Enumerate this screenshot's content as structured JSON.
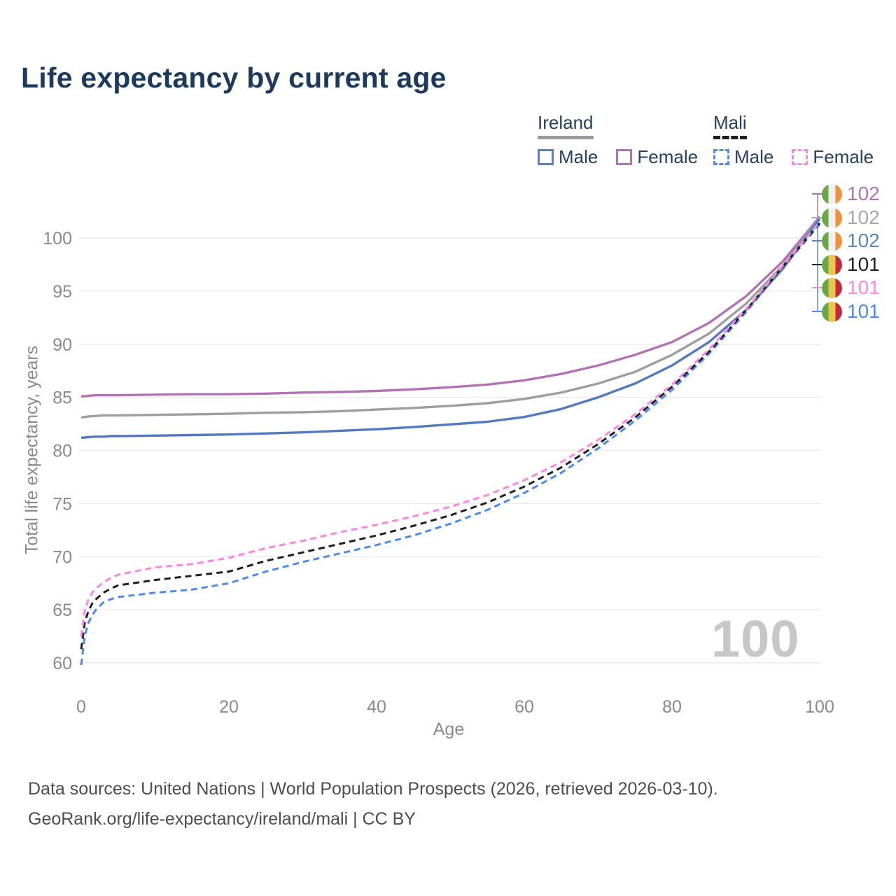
{
  "page": {
    "title": "Life expectancy by current age",
    "background": "#ffffff"
  },
  "legend": {
    "groups": [
      {
        "name": "Ireland",
        "underline_style": "solid",
        "underline_color": "#9a9a9a",
        "items": [
          {
            "label": "Male",
            "color": "#5b7fbd",
            "style": "solid"
          },
          {
            "label": "Female",
            "color": "#b173b1",
            "style": "solid"
          }
        ]
      },
      {
        "name": "Mali",
        "underline_style": "dashed",
        "underline_color": "#1f1f1f",
        "items": [
          {
            "label": "Male",
            "color": "#4d8af0",
            "style": "dashed"
          },
          {
            "label": "Female",
            "color": "#ff85e0",
            "style": "dashed"
          }
        ]
      }
    ]
  },
  "chart_data": {
    "type": "line",
    "title": "Life expectancy by current age",
    "xlabel": "Age",
    "ylabel": "Total life expectancy, years",
    "xlim": [
      0,
      100
    ],
    "ylim": [
      58,
      103
    ],
    "xticks": [
      0,
      20,
      40,
      60,
      80,
      100
    ],
    "yticks": [
      60,
      65,
      70,
      75,
      80,
      85,
      90,
      95,
      100
    ],
    "grid": "horizontal",
    "gridline_color": "#ececec",
    "tick_color": "#8a8a8a",
    "x": [
      0,
      0.5,
      1,
      1.5,
      2,
      3,
      4,
      5,
      10,
      15,
      20,
      25,
      30,
      35,
      40,
      45,
      50,
      55,
      60,
      65,
      70,
      75,
      80,
      85,
      90,
      95,
      100
    ],
    "series": [
      {
        "id": "ireland-female",
        "name": "Ireland Female",
        "country": "Ireland",
        "sex": "Female",
        "color": "#b173b1",
        "dash": false,
        "values": [
          85.1,
          85.1,
          85.15,
          85.17,
          85.2,
          85.2,
          85.2,
          85.2,
          85.25,
          85.3,
          85.3,
          85.35,
          85.45,
          85.5,
          85.6,
          85.75,
          85.95,
          86.2,
          86.6,
          87.2,
          88.0,
          89.0,
          90.2,
          92.0,
          94.5,
          97.8,
          102.0
        ]
      },
      {
        "id": "ireland-average",
        "name": "Ireland Both sexes",
        "country": "Ireland",
        "sex": "Both",
        "color": "#9e9e9e",
        "dash": false,
        "values": [
          83.1,
          83.15,
          83.2,
          83.22,
          83.25,
          83.3,
          83.3,
          83.3,
          83.35,
          83.4,
          83.45,
          83.55,
          83.6,
          83.7,
          83.85,
          84.0,
          84.2,
          84.45,
          84.85,
          85.45,
          86.3,
          87.4,
          89.0,
          91.0,
          93.8,
          97.4,
          101.9
        ]
      },
      {
        "id": "ireland-male",
        "name": "Ireland Male",
        "country": "Ireland",
        "sex": "Male",
        "color": "#5579be",
        "dash": false,
        "values": [
          81.2,
          81.22,
          81.25,
          81.28,
          81.3,
          81.3,
          81.35,
          81.35,
          81.4,
          81.45,
          81.5,
          81.6,
          81.7,
          81.85,
          82.0,
          82.2,
          82.45,
          82.7,
          83.15,
          83.9,
          85.0,
          86.3,
          88.0,
          90.2,
          93.2,
          97.1,
          101.8
        ]
      },
      {
        "id": "mali-male",
        "name": "Mali Male",
        "country": "Mali",
        "sex": "Male",
        "color": "#4d8af0",
        "dash": true,
        "values": [
          59.8,
          62.6,
          63.8,
          64.5,
          65.0,
          65.7,
          66.0,
          66.2,
          66.6,
          66.9,
          67.5,
          68.6,
          69.5,
          70.3,
          71.1,
          72.0,
          73.1,
          74.4,
          76.0,
          77.9,
          80.2,
          82.8,
          85.7,
          89.1,
          93.0,
          97.2,
          101.3
        ]
      },
      {
        "id": "mali-average",
        "name": "Mali Both sexes",
        "country": "Mali",
        "sex": "Both",
        "color": "#1f1f1f",
        "dash": true,
        "values": [
          61.3,
          63.9,
          64.9,
          65.6,
          66.0,
          66.6,
          67.0,
          67.3,
          67.8,
          68.2,
          68.6,
          69.6,
          70.4,
          71.2,
          72.0,
          72.9,
          73.9,
          75.1,
          76.6,
          78.4,
          80.6,
          83.1,
          86.0,
          89.3,
          93.2,
          97.3,
          101.4
        ]
      },
      {
        "id": "mali-female",
        "name": "Mali Female",
        "country": "Mali",
        "sex": "Female",
        "color": "#ff85e0",
        "dash": true,
        "values": [
          62.5,
          65.0,
          66.0,
          66.6,
          67.0,
          67.6,
          68.0,
          68.3,
          69.0,
          69.3,
          69.9,
          70.8,
          71.5,
          72.3,
          73.0,
          73.8,
          74.7,
          75.8,
          77.2,
          78.9,
          81.0,
          83.4,
          86.2,
          89.5,
          93.3,
          97.4,
          101.5
        ]
      }
    ],
    "flags": {
      "ireland": [
        "#69a744",
        "#f0f0f0",
        "#f0913a"
      ],
      "mali": [
        "#69a744",
        "#e9c64d",
        "#c2293d"
      ]
    },
    "end_labels": [
      {
        "id": "ireland-female",
        "flag": "ireland",
        "value": "102",
        "color": "#b173b1"
      },
      {
        "id": "ireland-average",
        "flag": "ireland",
        "value": "102",
        "color": "#a9a9a9"
      },
      {
        "id": "ireland-male",
        "flag": "ireland",
        "value": "102",
        "color": "#5b83c4"
      },
      {
        "id": "mali-average",
        "flag": "mali",
        "value": "101",
        "color": "#1f1f1f"
      },
      {
        "id": "mali-female",
        "flag": "mali",
        "value": "101",
        "color": "#ff85e0"
      },
      {
        "id": "mali-male",
        "flag": "mali",
        "value": "101",
        "color": "#4d8af0"
      }
    ],
    "legend_position": "top-right"
  },
  "watermark": "100",
  "footer": {
    "line1": "Data sources: United Nations | World Population Prospects (2026, retrieved 2026-03-10).",
    "line2": "GeoRank.org/life-expectancy/ireland/mali | CC BY"
  }
}
